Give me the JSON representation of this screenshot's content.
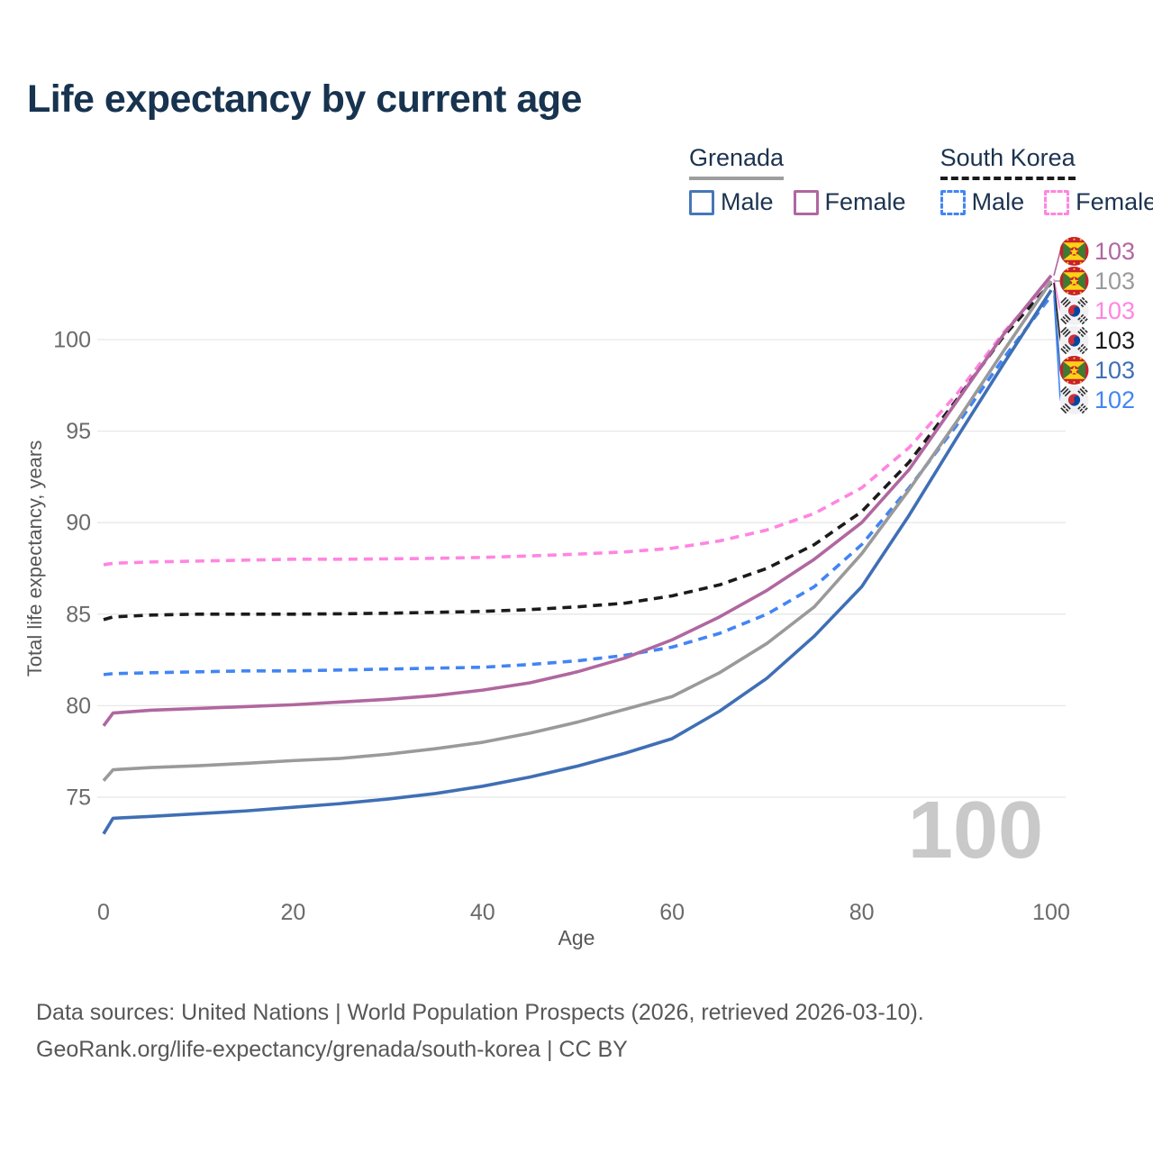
{
  "title": "Life expectancy by current age",
  "legend": {
    "groups": [
      {
        "label": "Grenada",
        "underline_style": "solid",
        "underline_color": "#9e9e9e",
        "items": [
          {
            "label": "Male",
            "color": "#4677b8",
            "dashed": false
          },
          {
            "label": "Female",
            "color": "#b0679f",
            "dashed": false
          }
        ]
      },
      {
        "label": "South Korea",
        "underline_style": "dashed",
        "underline_color": "#1b1b1b",
        "items": [
          {
            "label": "Male",
            "color": "#4285f4",
            "dashed": true
          },
          {
            "label": "Female",
            "color": "#ff85e1",
            "dashed": true
          }
        ]
      }
    ]
  },
  "chart_data": {
    "type": "line",
    "title": "Life expectancy by current age",
    "xlabel": "Age",
    "ylabel": "Total life expectancy, years",
    "xlim": [
      0,
      100
    ],
    "ylim": [
      72,
      105
    ],
    "xticks": [
      0,
      20,
      40,
      60,
      80,
      100
    ],
    "yticks": [
      75,
      80,
      85,
      90,
      95,
      100
    ],
    "grid": "horizontal",
    "legend_position": "top-right",
    "hover_age_watermark": "100",
    "x": [
      0,
      1,
      5,
      10,
      15,
      20,
      25,
      30,
      35,
      40,
      45,
      50,
      55,
      60,
      65,
      70,
      75,
      80,
      85,
      90,
      95,
      100
    ],
    "series": [
      {
        "name": "Grenada Female",
        "country": "Grenada",
        "sex": "Female",
        "color": "#b0679f",
        "dashed": false,
        "flag": "gd",
        "end_label": "103",
        "values": [
          78.9,
          79.6,
          79.75,
          79.85,
          79.95,
          80.05,
          80.2,
          80.35,
          80.55,
          80.85,
          81.25,
          81.85,
          82.6,
          83.6,
          84.85,
          86.3,
          88.0,
          90.0,
          92.9,
          96.6,
          100.3,
          103.5
        ]
      },
      {
        "name": "Grenada Both Sexes",
        "country": "Grenada",
        "sex": "Total",
        "color": "#9a9a9a",
        "dashed": false,
        "flag": "gd",
        "end_label": "103",
        "values": [
          75.9,
          76.5,
          76.62,
          76.72,
          76.85,
          77.0,
          77.12,
          77.35,
          77.65,
          78.0,
          78.5,
          79.1,
          79.8,
          80.5,
          81.8,
          83.4,
          85.4,
          88.3,
          91.8,
          95.5,
          99.4,
          103.2
        ]
      },
      {
        "name": "South Korea Female",
        "country": "South Korea",
        "sex": "Female",
        "color": "#ff85e1",
        "dashed": true,
        "flag": "kr",
        "end_label": "103",
        "values": [
          87.7,
          87.78,
          87.85,
          87.9,
          87.95,
          88.0,
          88.0,
          88.02,
          88.05,
          88.1,
          88.18,
          88.28,
          88.4,
          88.6,
          89.0,
          89.6,
          90.5,
          91.9,
          94.1,
          97.0,
          100.4,
          103.3
        ]
      },
      {
        "name": "South Korea Both Sexes",
        "country": "South Korea",
        "sex": "Total",
        "color": "#1b1b1b",
        "dashed": true,
        "flag": "kr",
        "end_label": "103",
        "values": [
          84.7,
          84.85,
          84.95,
          85.0,
          85.0,
          85.0,
          85.02,
          85.05,
          85.1,
          85.15,
          85.25,
          85.4,
          85.6,
          86.0,
          86.6,
          87.5,
          88.8,
          90.6,
          93.3,
          96.7,
          100.2,
          103.1
        ]
      },
      {
        "name": "Grenada Male",
        "country": "Grenada",
        "sex": "Male",
        "color": "#3f6fb5",
        "dashed": false,
        "flag": "gd",
        "end_label": "103",
        "values": [
          73.0,
          73.85,
          73.95,
          74.1,
          74.25,
          74.45,
          74.65,
          74.9,
          75.2,
          75.6,
          76.1,
          76.7,
          77.4,
          78.2,
          79.7,
          81.5,
          83.8,
          86.5,
          90.4,
          94.6,
          98.7,
          102.7
        ]
      },
      {
        "name": "South Korea Male",
        "country": "South Korea",
        "sex": "Male",
        "color": "#4285f4",
        "dashed": true,
        "flag": "kr",
        "end_label": "102",
        "values": [
          81.7,
          81.75,
          81.8,
          81.85,
          81.9,
          81.9,
          81.95,
          82.0,
          82.05,
          82.1,
          82.25,
          82.45,
          82.75,
          83.2,
          83.95,
          85.0,
          86.5,
          88.8,
          91.9,
          95.3,
          99.0,
          102.4
        ]
      }
    ]
  },
  "footer": {
    "line1": "Data sources: United Nations | World Population Prospects (2026, retrieved 2026-03-10).",
    "line2": "GeoRank.org/life-expectancy/grenada/south-korea | CC BY"
  }
}
